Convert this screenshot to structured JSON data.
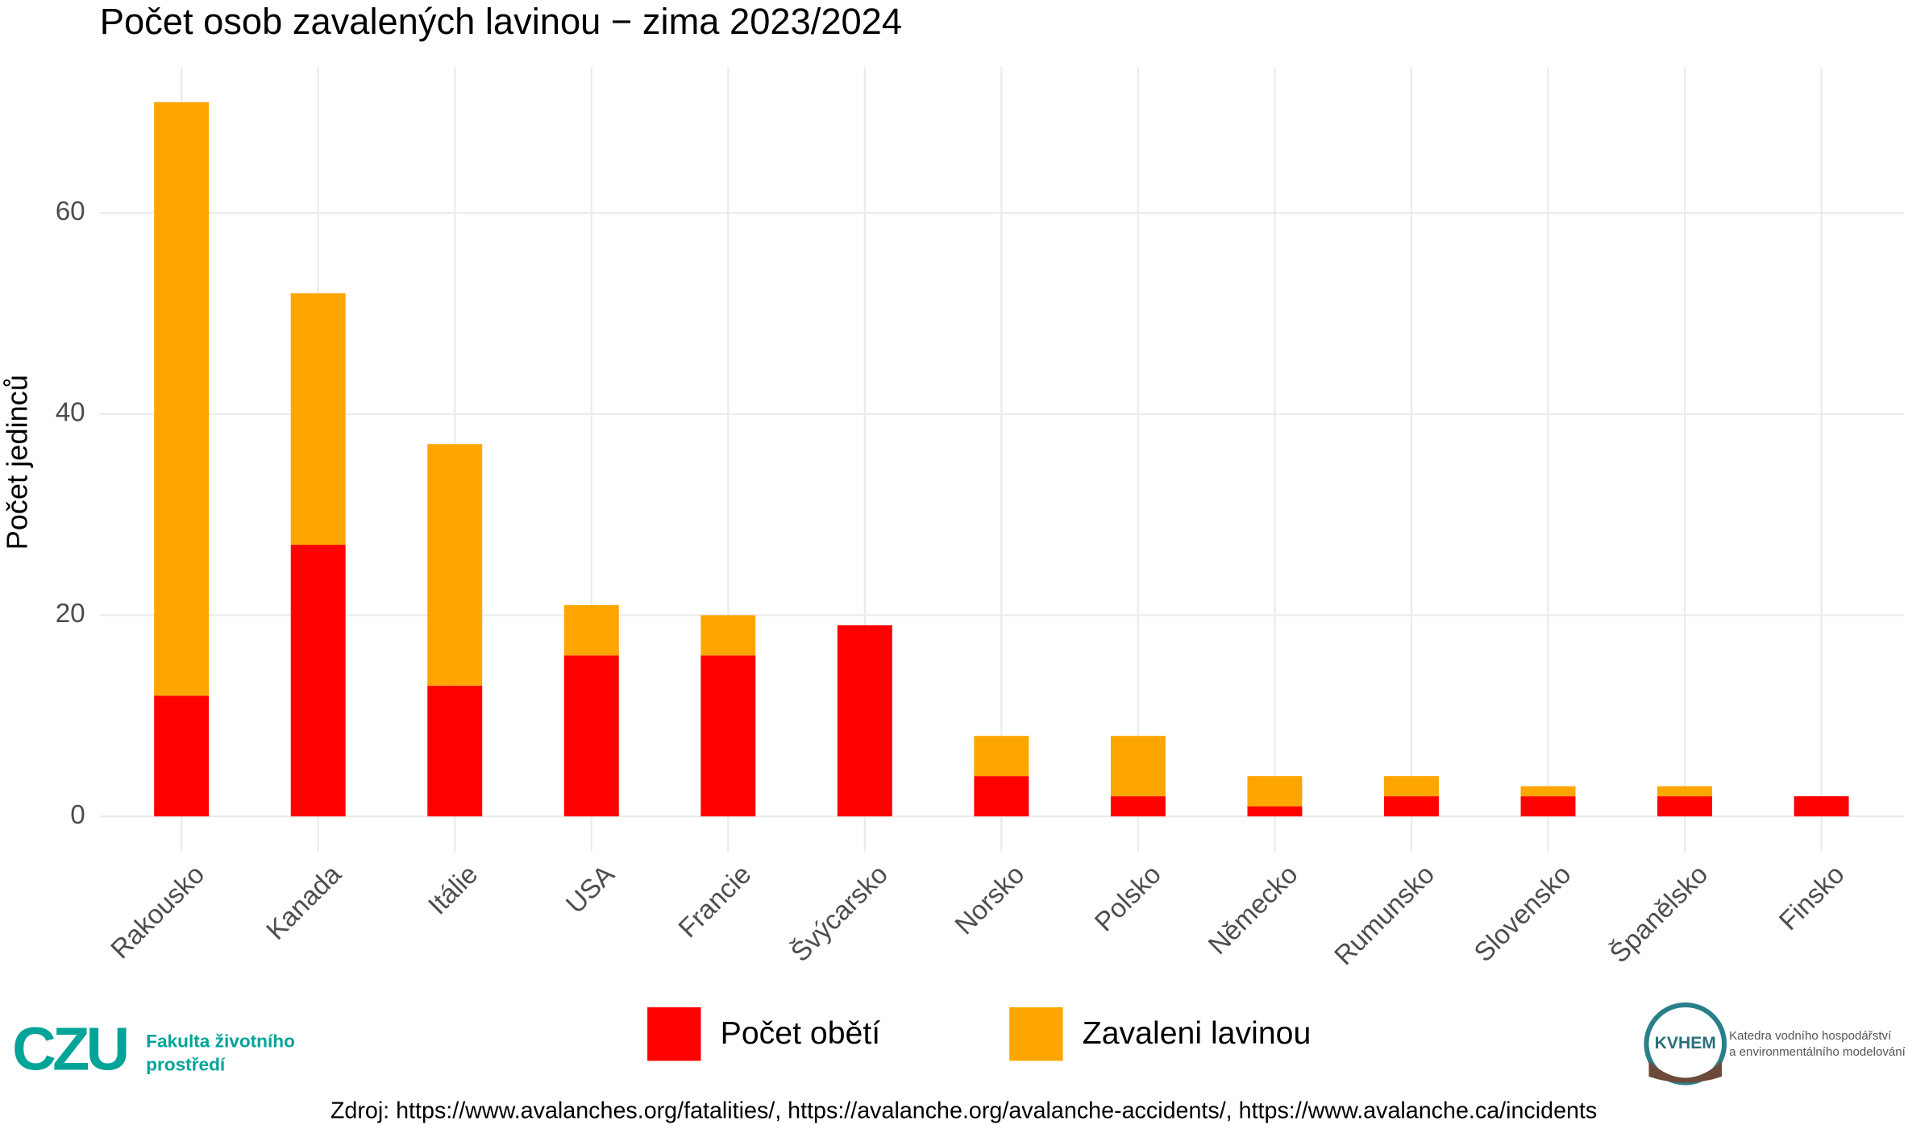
{
  "chart_data": {
    "type": "bar",
    "stacked": true,
    "title": "Počet osob zavalených lavinou − zima 2023/2024",
    "y_label": "Počet jedinců",
    "categories": [
      "Rakousko",
      "Kanada",
      "Itálie",
      "USA",
      "Francie",
      "Švýcarsko",
      "Norsko",
      "Polsko",
      "Německo",
      "Rumunsko",
      "Slovensko",
      "Španělsko",
      "Finsko"
    ],
    "series": [
      {
        "name": "Počet obětí",
        "color": "#ff0000",
        "values": [
          12,
          27,
          13,
          16,
          16,
          19,
          4,
          2,
          1,
          2,
          2,
          2,
          2
        ]
      },
      {
        "name": "Zavaleni lavinou",
        "color": "#ffa500",
        "values": [
          59,
          25,
          24,
          5,
          4,
          0,
          4,
          6,
          3,
          2,
          1,
          1,
          0
        ]
      }
    ],
    "ylim": [
      -3.5,
      74.5
    ],
    "yticks": [
      0,
      20,
      40,
      60
    ],
    "grid": true,
    "legend": "bottom"
  },
  "footer": {
    "left_logo_mark": "CZU",
    "left_logo_text": [
      "Fakulta životního",
      "prostředí"
    ],
    "right_logo_mark": "KVHEM",
    "right_logo_text": [
      "Katedra vodního hospodářství",
      "a environmentálního modelování"
    ],
    "source": "Zdroj: https://www.avalanches.org/fatalities/, https://avalanche.org/avalanche-accidents/, https://www.avalanche.ca/incidents"
  }
}
